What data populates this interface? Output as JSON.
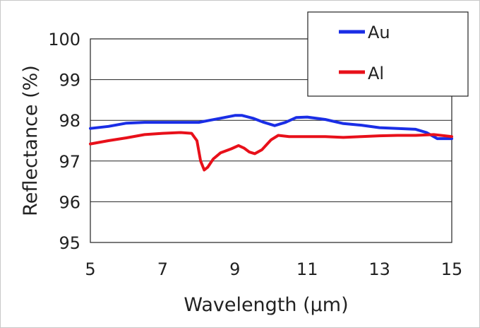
{
  "chart_data": {
    "type": "line",
    "xlabel": "Wavelength (μm)",
    "ylabel": "Reflectance  (%)",
    "xlim": [
      5,
      15
    ],
    "ylim": [
      95,
      100
    ],
    "x_ticks": [
      "5",
      "7",
      "9",
      "11",
      "13",
      "15"
    ],
    "y_ticks": [
      "95",
      "96",
      "97",
      "98",
      "99",
      "100"
    ],
    "grid": "horizontal",
    "legend_position": "top-right",
    "series": [
      {
        "name": "Au",
        "color": "#1a2ee6",
        "points": [
          [
            5.0,
            97.8
          ],
          [
            5.5,
            97.85
          ],
          [
            6.0,
            97.93
          ],
          [
            6.5,
            97.95
          ],
          [
            7.0,
            97.95
          ],
          [
            7.5,
            97.95
          ],
          [
            8.0,
            97.95
          ],
          [
            8.3,
            98.0
          ],
          [
            8.6,
            98.05
          ],
          [
            9.0,
            98.12
          ],
          [
            9.2,
            98.12
          ],
          [
            9.5,
            98.05
          ],
          [
            9.8,
            97.95
          ],
          [
            10.1,
            97.87
          ],
          [
            10.4,
            97.95
          ],
          [
            10.7,
            98.07
          ],
          [
            11.0,
            98.08
          ],
          [
            11.5,
            98.02
          ],
          [
            12.0,
            97.92
          ],
          [
            12.5,
            97.88
          ],
          [
            13.0,
            97.82
          ],
          [
            13.5,
            97.8
          ],
          [
            14.0,
            97.78
          ],
          [
            14.3,
            97.7
          ],
          [
            14.6,
            97.55
          ],
          [
            15.0,
            97.55
          ]
        ]
      },
      {
        "name": "Al",
        "color": "#e8101a",
        "points": [
          [
            5.0,
            97.42
          ],
          [
            5.5,
            97.5
          ],
          [
            6.0,
            97.57
          ],
          [
            6.5,
            97.65
          ],
          [
            7.0,
            97.68
          ],
          [
            7.5,
            97.7
          ],
          [
            7.8,
            97.68
          ],
          [
            7.95,
            97.5
          ],
          [
            8.05,
            97.0
          ],
          [
            8.15,
            96.78
          ],
          [
            8.25,
            96.85
          ],
          [
            8.4,
            97.05
          ],
          [
            8.6,
            97.2
          ],
          [
            8.9,
            97.3
          ],
          [
            9.1,
            97.38
          ],
          [
            9.25,
            97.32
          ],
          [
            9.4,
            97.22
          ],
          [
            9.55,
            97.18
          ],
          [
            9.75,
            97.28
          ],
          [
            10.0,
            97.52
          ],
          [
            10.2,
            97.63
          ],
          [
            10.5,
            97.6
          ],
          [
            11.0,
            97.6
          ],
          [
            11.5,
            97.6
          ],
          [
            12.0,
            97.58
          ],
          [
            12.5,
            97.6
          ],
          [
            13.0,
            97.62
          ],
          [
            13.5,
            97.63
          ],
          [
            14.0,
            97.63
          ],
          [
            14.5,
            97.65
          ],
          [
            15.0,
            97.6
          ]
        ]
      }
    ]
  }
}
